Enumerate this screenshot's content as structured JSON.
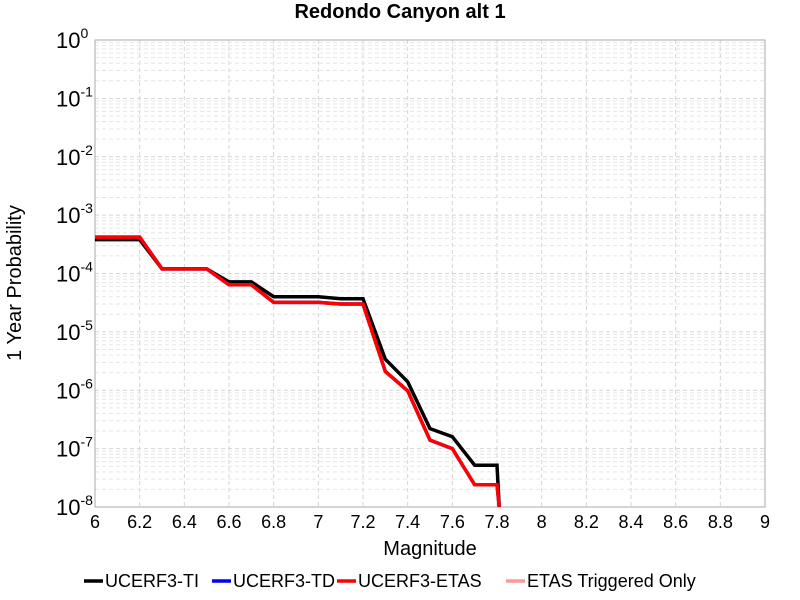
{
  "chart_data": {
    "type": "line",
    "title": "Redondo Canyon alt 1",
    "xlabel": "Magnitude",
    "ylabel": "1 Year Probability",
    "xlim": [
      6,
      9
    ],
    "ylim": [
      1e-08,
      1
    ],
    "yscale": "log",
    "grid": true,
    "legend_position": "bottom",
    "xticks": [
      "6",
      "6.2",
      "6.4",
      "6.6",
      "6.8",
      "7",
      "7.2",
      "7.4",
      "7.6",
      "7.8",
      "8",
      "8.2",
      "8.4",
      "8.6",
      "8.8",
      "9"
    ],
    "yticks": [
      {
        "base": "10",
        "exp": "0"
      },
      {
        "base": "10",
        "exp": "-1"
      },
      {
        "base": "10",
        "exp": "-2"
      },
      {
        "base": "10",
        "exp": "-3"
      },
      {
        "base": "10",
        "exp": "-4"
      },
      {
        "base": "10",
        "exp": "-5"
      },
      {
        "base": "10",
        "exp": "-6"
      },
      {
        "base": "10",
        "exp": "-7"
      },
      {
        "base": "10",
        "exp": "-8"
      }
    ],
    "series": [
      {
        "name": "UCERF3-TI",
        "color": "#000000",
        "x": [
          6.0,
          6.2,
          6.3,
          6.5,
          6.6,
          6.7,
          6.8,
          6.9,
          7.0,
          7.1,
          7.2,
          7.3,
          7.4,
          7.5,
          7.6,
          7.7,
          7.8,
          7.81
        ],
        "y": [
          0.00038,
          0.00038,
          0.00012,
          0.00012,
          7.2e-05,
          7.2e-05,
          4e-05,
          4e-05,
          4e-05,
          3.7e-05,
          3.7e-05,
          3.4e-06,
          1.4e-06,
          2.2e-07,
          1.6e-07,
          5.2e-08,
          5.2e-08,
          7.8e-09
        ]
      },
      {
        "name": "UCERF3-TD",
        "color": "#0000ff",
        "x": [
          6.0,
          6.2,
          6.3,
          6.5,
          6.6,
          6.7,
          6.8,
          6.9,
          7.0,
          7.1,
          7.2,
          7.3,
          7.4,
          7.5,
          7.6,
          7.7,
          7.8,
          7.81
        ],
        "y": [
          0.00042,
          0.00042,
          0.00012,
          0.00012,
          6.4e-05,
          6.4e-05,
          3.2e-05,
          3.2e-05,
          3.2e-05,
          3e-05,
          3e-05,
          2.1e-06,
          9.8e-07,
          1.4e-07,
          1e-07,
          2.4e-08,
          2.4e-08,
          7.8e-09
        ]
      },
      {
        "name": "UCERF3-ETAS",
        "color": "#ff0000",
        "x": [
          6.0,
          6.2,
          6.3,
          6.5,
          6.6,
          6.7,
          6.8,
          6.9,
          7.0,
          7.1,
          7.2,
          7.3,
          7.4,
          7.5,
          7.6,
          7.7,
          7.8,
          7.81
        ],
        "y": [
          0.00042,
          0.00042,
          0.00012,
          0.00012,
          6.4e-05,
          6.4e-05,
          3.2e-05,
          3.2e-05,
          3.2e-05,
          3e-05,
          3e-05,
          2.1e-06,
          9.8e-07,
          1.4e-07,
          1e-07,
          2.4e-08,
          2.4e-08,
          7.8e-09
        ]
      },
      {
        "name": "ETAS Triggered Only",
        "color": "#ff9999",
        "x": [],
        "y": []
      }
    ]
  }
}
